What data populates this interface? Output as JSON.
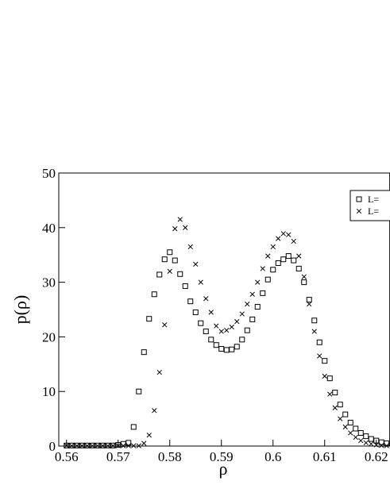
{
  "chart_data": {
    "type": "scatter",
    "xlabel": "ρ",
    "ylabel": "p(ρ)",
    "x": [
      0.56,
      0.561,
      0.562,
      0.563,
      0.564,
      0.565,
      0.566,
      0.567,
      0.568,
      0.569,
      0.57,
      0.571,
      0.572,
      0.573,
      0.574,
      0.575,
      0.576,
      0.577,
      0.578,
      0.579,
      0.58,
      0.581,
      0.582,
      0.583,
      0.584,
      0.585,
      0.586,
      0.587,
      0.588,
      0.589,
      0.59,
      0.591,
      0.592,
      0.593,
      0.594,
      0.595,
      0.596,
      0.597,
      0.598,
      0.599,
      0.6,
      0.601,
      0.602,
      0.603,
      0.604,
      0.605,
      0.606,
      0.607,
      0.608,
      0.609,
      0.61,
      0.611,
      0.612,
      0.613,
      0.614,
      0.615,
      0.616,
      0.617,
      0.618,
      0.619,
      0.62,
      0.621,
      0.622
    ],
    "series": [
      {
        "name": "L=",
        "marker": "square",
        "color": "#000000",
        "values": [
          0.1,
          0.1,
          0.1,
          0.1,
          0.1,
          0.1,
          0.1,
          0.1,
          0.1,
          0.1,
          0.2,
          0.4,
          0.6,
          3.5,
          10,
          17.2,
          23.3,
          27.8,
          31.4,
          34.2,
          35.5,
          34,
          31.5,
          29.3,
          26.5,
          24.5,
          22.5,
          21,
          19.5,
          18.5,
          17.8,
          17.6,
          17.7,
          18.2,
          19.5,
          21.2,
          23.2,
          25.5,
          28,
          30.5,
          32.3,
          33.5,
          34.2,
          34.8,
          34,
          32.5,
          30,
          26.8,
          23,
          19,
          15.6,
          12.4,
          9.8,
          7.6,
          5.8,
          4.3,
          3.2,
          2.4,
          1.8,
          1.3,
          1,
          0.7,
          0.5
        ]
      },
      {
        "name": "L=",
        "marker": "cross",
        "color": "#000000",
        "values": [
          0.05,
          0.05,
          0.05,
          0.05,
          0.05,
          0.05,
          0.05,
          0.05,
          0.05,
          0.05,
          0.05,
          0.05,
          0.05,
          0.05,
          0.05,
          0.5,
          2,
          6.5,
          13.5,
          22.2,
          32,
          39.8,
          41.5,
          40,
          36.5,
          33.3,
          30,
          27,
          24.5,
          22,
          21,
          21.2,
          21.8,
          22.8,
          24.2,
          26,
          27.8,
          30,
          32.5,
          34.8,
          36.5,
          38,
          38.9,
          38.7,
          37.5,
          34.8,
          31,
          26,
          21,
          16.5,
          12.8,
          9.5,
          7,
          5,
          3.5,
          2.4,
          1.6,
          1,
          0.6,
          0.4,
          0.2,
          0.1,
          0.05
        ]
      }
    ],
    "xlim": [
      0.5585,
      0.6226
    ],
    "ylim": [
      0,
      50
    ],
    "xticks": [
      {
        "value": 0.56,
        "label": "0.56"
      },
      0.57,
      0.58,
      0.59,
      0.6,
      0.61,
      {
        "value": 0.62,
        "label": "0.62"
      }
    ],
    "yticks": [
      0,
      10,
      20,
      30,
      40,
      50
    ],
    "legend": "upper right"
  }
}
